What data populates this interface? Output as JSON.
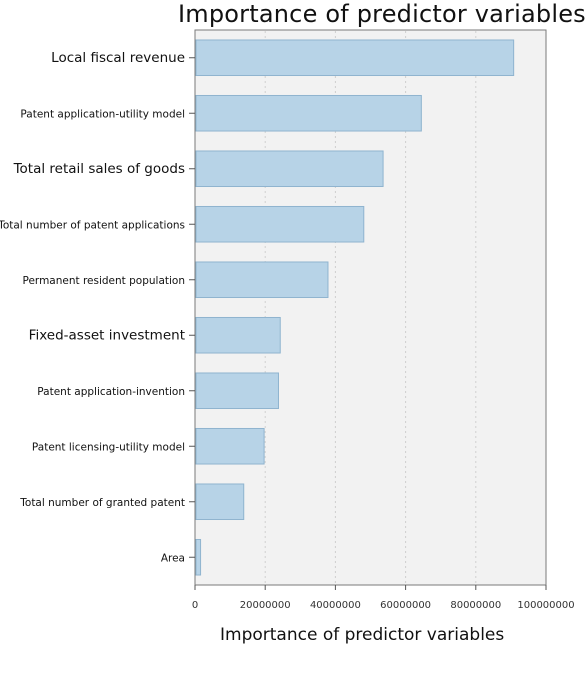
{
  "chart_data": {
    "type": "bar",
    "orientation": "horizontal",
    "title": "Importance of predictor variables",
    "xlabel": "Importance of predictor variables",
    "ylabel": "",
    "categories": [
      "Local fiscal revenue",
      "Patent application-utility model",
      "Total retail sales of goods",
      "Total number of patent applications",
      "Permanent resident population",
      "Fixed-asset investment",
      "Patent application-invention",
      "Patent licensing-utility model",
      "Total number of granted patent",
      "Area"
    ],
    "values": [
      90500000,
      64200000,
      53300000,
      47800000,
      37600000,
      24000000,
      23500000,
      19400000,
      13600000,
      1300000
    ],
    "xlim": [
      0,
      100000000
    ],
    "xticks": [
      0,
      20000000,
      40000000,
      60000000,
      80000000,
      100000000
    ],
    "xtick_labels": [
      "0",
      "20000000",
      "40000000",
      "60000000",
      "80000000",
      "100000000"
    ],
    "grid": true,
    "bar_color": "#b7d3e7",
    "bar_edge_color": "#8fb4cf",
    "plot_background": "#f2f2f2"
  }
}
